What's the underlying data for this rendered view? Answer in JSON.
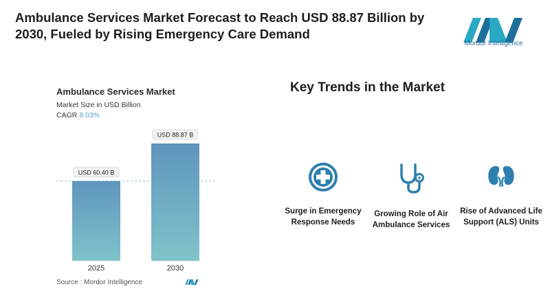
{
  "headline": "Ambulance Services Market Forecast to Reach USD 88.87 Billion by 2030, Fueled by Rising Emergency Care Demand",
  "brand": {
    "name": "Mordor Intelligence"
  },
  "colors": {
    "bar_top": "#5f95bd",
    "bar_bottom": "#80c3c9",
    "accent": "#4f9fc6",
    "icon": "#2e7fae"
  },
  "chart_data": {
    "type": "bar",
    "title": "Ambulance Services Market",
    "subtitle": "Market Size in USD Billion",
    "cagr_label": "CAGR",
    "cagr_value": "8.03%",
    "categories": [
      "2025",
      "2030"
    ],
    "values": [
      60.4,
      88.87
    ],
    "data_labels": [
      "USD 60.40 B",
      "USD 88.87 B"
    ],
    "ylim": [
      0,
      100
    ],
    "reference_line": "dashed line at 2025 value",
    "grid": false
  },
  "source": "Source :  Mordor Intelligence",
  "trends": {
    "title": "Key Trends in the Market",
    "items": [
      {
        "icon": "medical-cross-icon",
        "label": "Surge in Emergency Response Needs"
      },
      {
        "icon": "stethoscope-icon",
        "label": "Growing Role of Air Ambulance Services"
      },
      {
        "icon": "kidneys-icon",
        "label": "Rise of Advanced Life Support (ALS) Units"
      }
    ]
  }
}
